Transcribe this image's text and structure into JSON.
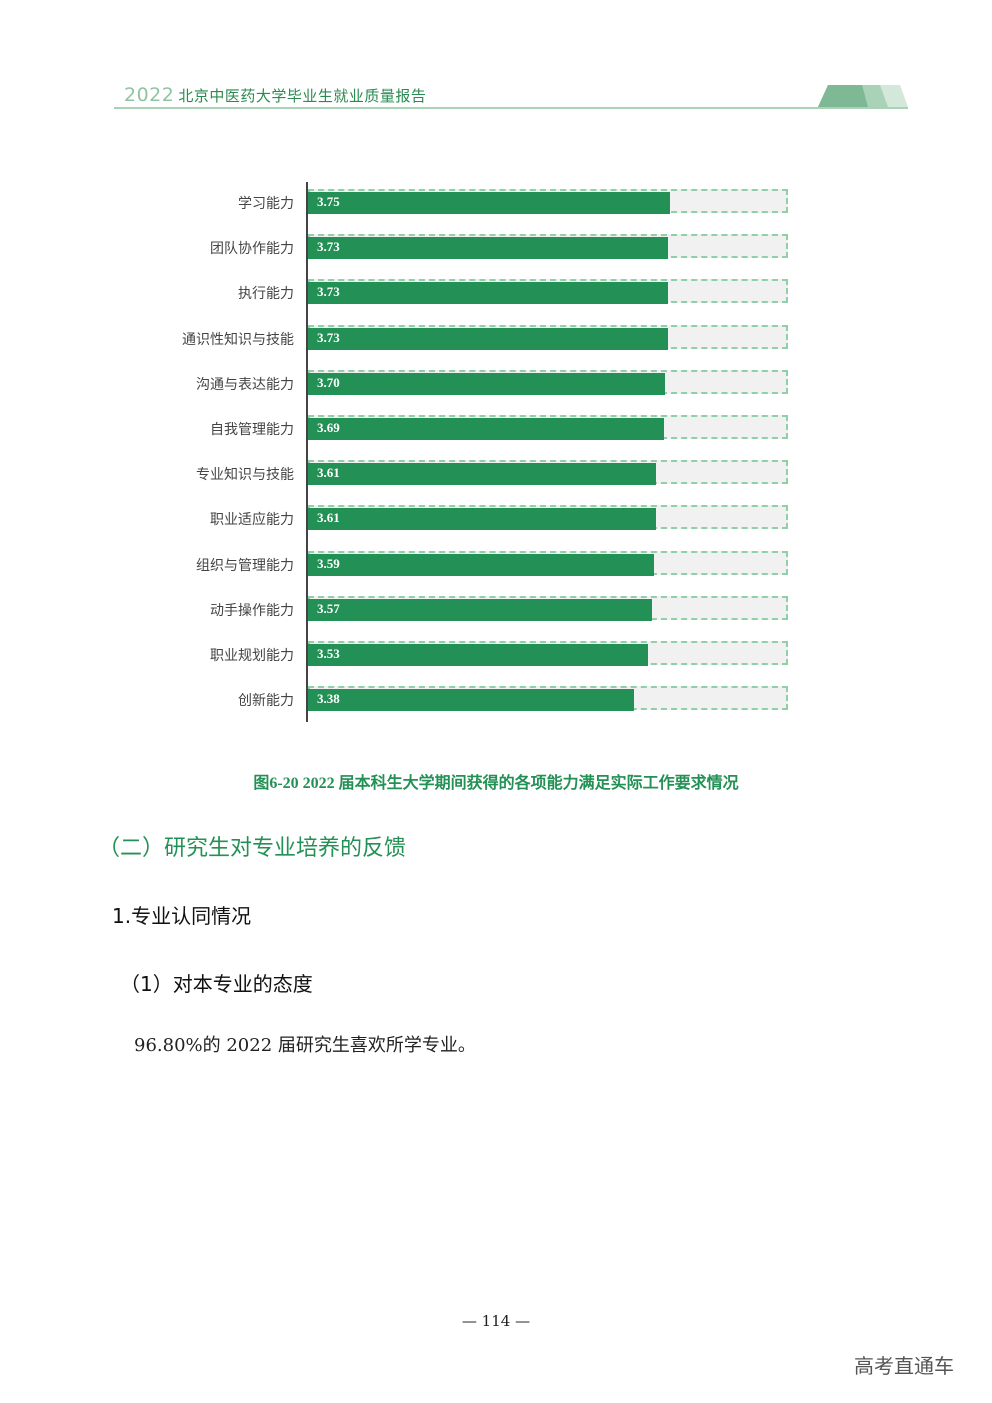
{
  "header": {
    "year": "2022",
    "title": "北京中医药大学毕业生就业质量报告"
  },
  "chart_data": {
    "type": "bar",
    "orientation": "horizontal",
    "categories": [
      "学习能力",
      "团队协作能力",
      "执行能力",
      "通识性知识与技能",
      "沟通与表达能力",
      "自我管理能力",
      "专业知识与技能",
      "职业适应能力",
      "组织与管理能力",
      "动手操作能力",
      "职业规划能力",
      "创新能力"
    ],
    "values": [
      3.75,
      3.73,
      3.73,
      3.73,
      3.7,
      3.69,
      3.61,
      3.61,
      3.59,
      3.57,
      3.53,
      3.38
    ],
    "value_labels": [
      "3.75",
      "3.73",
      "3.73",
      "3.73",
      "3.70",
      "3.69",
      "3.61",
      "3.61",
      "3.59",
      "3.57",
      "3.53",
      "3.38"
    ],
    "xlim": [
      0,
      5
    ],
    "bar_color": "#239055",
    "title": "图6-20 2022 届本科生大学期间获得的各项能力满足实际工作要求情况"
  },
  "section": {
    "h2": "（二）研究生对专业培养的反馈",
    "h3": "1.专业认同情况",
    "h4": "（1）对本专业的态度",
    "para": "96.80%的 2022 届研究生喜欢所学专业。"
  },
  "page_number": "— 114 —",
  "watermark": "高考直通车"
}
